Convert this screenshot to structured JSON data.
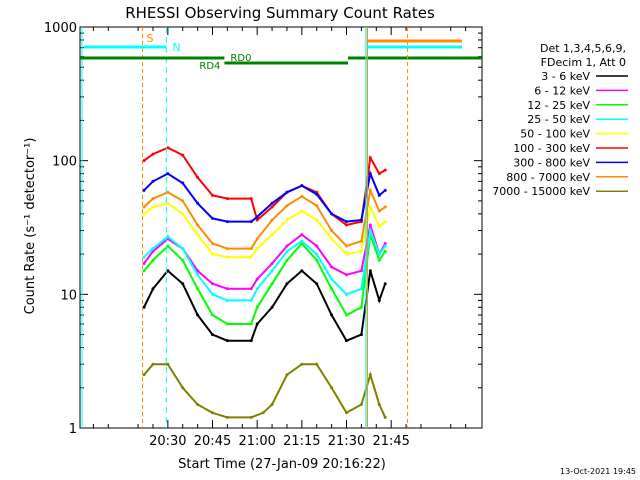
{
  "chart_data": {
    "type": "line",
    "title": "RHESSI Observing Summary Count Rates",
    "xlabel": "Start Time (27-Jan-09 20:16:22)",
    "ylabel": "Count Rate (s⁻¹ detector⁻¹)",
    "yscale": "log",
    "xlim_minutes": [
      20.5,
      1335.5
    ],
    "ylim": [
      1,
      1000
    ],
    "x_ticks": [
      {
        "minute": 1230,
        "label": "20:30"
      },
      {
        "minute": 1245,
        "label": "20:45"
      },
      {
        "minute": 1260,
        "label": "21:00"
      },
      {
        "minute": 1275,
        "label": "21:15"
      },
      {
        "minute": 1290,
        "label": "21:30"
      },
      {
        "minute": 1305,
        "label": "21:45"
      }
    ],
    "y_ticks": [
      {
        "value": 1,
        "label": "1"
      },
      {
        "value": 10,
        "label": "10"
      },
      {
        "value": 100,
        "label": "100"
      },
      {
        "value": 1000,
        "label": "1000"
      }
    ],
    "legend_header": [
      "Det 1,3,4,5,6,9,",
      "FDecim 1, Att 0"
    ],
    "legend_position": "right",
    "footer_date": "13-Oct-2021 19:45",
    "series": [
      {
        "name": "3 - 6 keV",
        "color": "#000000",
        "values": [
          [
            1222,
            8
          ],
          [
            1225,
            11
          ],
          [
            1230,
            15
          ],
          [
            1235,
            12
          ],
          [
            1240,
            7
          ],
          [
            1245,
            5
          ],
          [
            1250,
            4.5
          ],
          [
            1258,
            4.5
          ],
          [
            1260,
            6
          ],
          [
            1265,
            8
          ],
          [
            1270,
            12
          ],
          [
            1275,
            15
          ],
          [
            1280,
            12
          ],
          [
            1285,
            7
          ],
          [
            1290,
            4.5
          ],
          [
            1295,
            5
          ],
          [
            1298,
            15
          ],
          [
            1301,
            9
          ],
          [
            1303,
            12
          ]
        ]
      },
      {
        "name": "6 - 12 keV",
        "color": "#ff00ff",
        "values": [
          [
            1222,
            17
          ],
          [
            1225,
            21
          ],
          [
            1230,
            26
          ],
          [
            1235,
            22
          ],
          [
            1240,
            15
          ],
          [
            1245,
            12
          ],
          [
            1250,
            11
          ],
          [
            1258,
            11
          ],
          [
            1260,
            13
          ],
          [
            1265,
            17
          ],
          [
            1270,
            23
          ],
          [
            1275,
            28
          ],
          [
            1280,
            23
          ],
          [
            1285,
            16
          ],
          [
            1290,
            14
          ],
          [
            1295,
            15
          ],
          [
            1298,
            33
          ],
          [
            1301,
            20
          ],
          [
            1303,
            24
          ]
        ]
      },
      {
        "name": "12 - 25 keV",
        "color": "#00ff00",
        "values": [
          [
            1222,
            15
          ],
          [
            1225,
            18
          ],
          [
            1230,
            23
          ],
          [
            1235,
            18
          ],
          [
            1240,
            11
          ],
          [
            1245,
            7
          ],
          [
            1250,
            6
          ],
          [
            1258,
            6
          ],
          [
            1260,
            8
          ],
          [
            1265,
            12
          ],
          [
            1270,
            18
          ],
          [
            1275,
            24
          ],
          [
            1280,
            18
          ],
          [
            1285,
            11
          ],
          [
            1290,
            7
          ],
          [
            1295,
            8
          ],
          [
            1298,
            28
          ],
          [
            1301,
            18
          ],
          [
            1303,
            21
          ]
        ]
      },
      {
        "name": "25 - 50 keV",
        "color": "#00ffff",
        "values": [
          [
            1222,
            19
          ],
          [
            1225,
            22
          ],
          [
            1230,
            27
          ],
          [
            1235,
            22
          ],
          [
            1240,
            14
          ],
          [
            1245,
            10
          ],
          [
            1250,
            9
          ],
          [
            1258,
            9
          ],
          [
            1260,
            11
          ],
          [
            1265,
            15
          ],
          [
            1270,
            21
          ],
          [
            1275,
            25
          ],
          [
            1280,
            20
          ],
          [
            1285,
            13
          ],
          [
            1290,
            10
          ],
          [
            1295,
            11
          ],
          [
            1298,
            30
          ],
          [
            1301,
            20
          ],
          [
            1303,
            23
          ]
        ]
      },
      {
        "name": "50 - 100 keV",
        "color": "#ffff00",
        "values": [
          [
            1222,
            40
          ],
          [
            1225,
            45
          ],
          [
            1230,
            48
          ],
          [
            1235,
            40
          ],
          [
            1240,
            28
          ],
          [
            1245,
            20
          ],
          [
            1250,
            19
          ],
          [
            1258,
            19
          ],
          [
            1260,
            22
          ],
          [
            1265,
            28
          ],
          [
            1270,
            36
          ],
          [
            1275,
            42
          ],
          [
            1280,
            36
          ],
          [
            1285,
            26
          ],
          [
            1290,
            20
          ],
          [
            1295,
            21
          ],
          [
            1298,
            45
          ],
          [
            1301,
            32
          ],
          [
            1303,
            35
          ]
        ]
      },
      {
        "name": "100 - 300 keV",
        "color": "#ff0000",
        "values": [
          [
            1222,
            100
          ],
          [
            1225,
            112
          ],
          [
            1230,
            125
          ],
          [
            1235,
            110
          ],
          [
            1240,
            75
          ],
          [
            1245,
            55
          ],
          [
            1250,
            52
          ],
          [
            1258,
            52
          ],
          [
            1260,
            36
          ],
          [
            1265,
            45
          ],
          [
            1270,
            58
          ],
          [
            1275,
            65
          ],
          [
            1280,
            58
          ],
          [
            1285,
            40
          ],
          [
            1290,
            33
          ],
          [
            1295,
            35
          ],
          [
            1298,
            105
          ],
          [
            1301,
            80
          ],
          [
            1303,
            85
          ]
        ]
      },
      {
        "name": "300 - 800 keV",
        "color": "#0000ff",
        "values": [
          [
            1222,
            60
          ],
          [
            1225,
            70
          ],
          [
            1230,
            80
          ],
          [
            1235,
            68
          ],
          [
            1240,
            48
          ],
          [
            1245,
            37
          ],
          [
            1250,
            35
          ],
          [
            1258,
            35
          ],
          [
            1260,
            38
          ],
          [
            1265,
            48
          ],
          [
            1270,
            58
          ],
          [
            1275,
            65
          ],
          [
            1280,
            56
          ],
          [
            1285,
            40
          ],
          [
            1290,
            35
          ],
          [
            1295,
            36
          ],
          [
            1298,
            80
          ],
          [
            1301,
            55
          ],
          [
            1303,
            60
          ]
        ]
      },
      {
        "name": "800 - 7000 keV",
        "color": "#ff8c00",
        "values": [
          [
            1222,
            45
          ],
          [
            1225,
            52
          ],
          [
            1230,
            58
          ],
          [
            1235,
            50
          ],
          [
            1240,
            33
          ],
          [
            1245,
            24
          ],
          [
            1250,
            22
          ],
          [
            1258,
            22
          ],
          [
            1260,
            26
          ],
          [
            1265,
            36
          ],
          [
            1270,
            46
          ],
          [
            1275,
            54
          ],
          [
            1280,
            46
          ],
          [
            1285,
            30
          ],
          [
            1290,
            23
          ],
          [
            1295,
            25
          ],
          [
            1298,
            60
          ],
          [
            1301,
            42
          ],
          [
            1303,
            45
          ]
        ]
      },
      {
        "name": "7000 - 15000 keV",
        "color": "#808000",
        "values": [
          [
            1222,
            2.5
          ],
          [
            1225,
            3
          ],
          [
            1230,
            3
          ],
          [
            1235,
            2
          ],
          [
            1240,
            1.5
          ],
          [
            1245,
            1.3
          ],
          [
            1250,
            1.2
          ],
          [
            1258,
            1.2
          ],
          [
            1262,
            1.3
          ],
          [
            1265,
            1.5
          ],
          [
            1270,
            2.5
          ],
          [
            1275,
            3
          ],
          [
            1280,
            3
          ],
          [
            1285,
            2
          ],
          [
            1290,
            1.3
          ],
          [
            1295,
            1.5
          ],
          [
            1298,
            2.5
          ],
          [
            1301,
            1.5
          ],
          [
            1303,
            1.2
          ]
        ]
      }
    ],
    "annotations": {
      "S_label": "S",
      "N_label": "N",
      "RD0_label": "RD0",
      "RD4_label": "RD4",
      "S_minute": 1221.5,
      "N_minute": 1229.5,
      "RD4_start": 1249,
      "RD0_end": 1290.5,
      "attenuator_minutes": [
        1296.5,
        1297.0
      ],
      "end_line_minute": 1310.5
    }
  }
}
